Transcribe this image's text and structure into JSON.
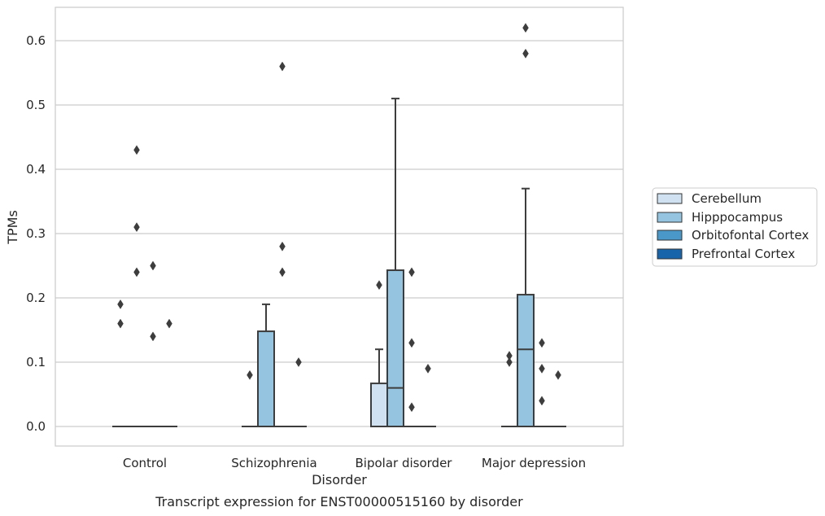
{
  "chart_data": {
    "type": "box",
    "caption": "Transcript expression for ENST00000515160 by disorder",
    "xlabel": "Disorder",
    "ylabel": "TPMs",
    "ylim": [
      -0.03,
      0.65
    ],
    "yticks": [
      "0.0",
      "0.1",
      "0.2",
      "0.3",
      "0.4",
      "0.5",
      "0.6"
    ],
    "grid": "horizontal",
    "legend_position": "right",
    "categories": [
      "Control",
      "Schizophrenia",
      "Bipolar disorder",
      "Major depression"
    ],
    "series": [
      {
        "name": "Cerebellum",
        "color": "#d0e1f2"
      },
      {
        "name": "Hipppocampus",
        "color": "#94c4df"
      },
      {
        "name": "Orbitofontal Cortex",
        "color": "#4a98c9"
      },
      {
        "name": "Prefrontal Cortex",
        "color": "#1764ab"
      }
    ],
    "boxes": [
      {
        "category": "Control",
        "series": "Cerebellum",
        "q1": 0,
        "median": 0,
        "q3": 0,
        "whisker_low": 0,
        "whisker_high": 0,
        "outliers": [
          0.19,
          0.16
        ]
      },
      {
        "category": "Control",
        "series": "Hipppocampus",
        "q1": 0,
        "median": 0,
        "q3": 0,
        "whisker_low": 0,
        "whisker_high": 0,
        "outliers": [
          0.43,
          0.31,
          0.24
        ]
      },
      {
        "category": "Control",
        "series": "Orbitofontal Cortex",
        "q1": 0,
        "median": 0,
        "q3": 0,
        "whisker_low": 0,
        "whisker_high": 0,
        "outliers": [
          0.25,
          0.14
        ]
      },
      {
        "category": "Control",
        "series": "Prefrontal Cortex",
        "q1": 0,
        "median": 0,
        "q3": 0,
        "whisker_low": 0,
        "whisker_high": 0,
        "outliers": [
          0.16
        ]
      },
      {
        "category": "Schizophrenia",
        "series": "Cerebellum",
        "q1": 0,
        "median": 0,
        "q3": 0,
        "whisker_low": 0,
        "whisker_high": 0,
        "outliers": [
          0.08
        ]
      },
      {
        "category": "Schizophrenia",
        "series": "Hipppocampus",
        "q1": 0,
        "median": 0,
        "q3": 0.148,
        "whisker_low": 0,
        "whisker_high": 0.19,
        "outliers": []
      },
      {
        "category": "Schizophrenia",
        "series": "Orbitofontal Cortex",
        "q1": 0,
        "median": 0,
        "q3": 0,
        "whisker_low": 0,
        "whisker_high": 0,
        "outliers": [
          0.56,
          0.28,
          0.24
        ]
      },
      {
        "category": "Schizophrenia",
        "series": "Prefrontal Cortex",
        "q1": 0,
        "median": 0,
        "q3": 0,
        "whisker_low": 0,
        "whisker_high": 0,
        "outliers": [
          0.1
        ]
      },
      {
        "category": "Bipolar disorder",
        "series": "Cerebellum",
        "q1": 0,
        "median": 0,
        "q3": 0.067,
        "whisker_low": 0,
        "whisker_high": 0.12,
        "outliers": [
          0.22
        ]
      },
      {
        "category": "Bipolar disorder",
        "series": "Hipppocampus",
        "q1": 0,
        "median": 0.06,
        "q3": 0.243,
        "whisker_low": 0,
        "whisker_high": 0.51,
        "outliers": []
      },
      {
        "category": "Bipolar disorder",
        "series": "Orbitofontal Cortex",
        "q1": 0,
        "median": 0,
        "q3": 0,
        "whisker_low": 0,
        "whisker_high": 0,
        "outliers": [
          0.24,
          0.13,
          0.03
        ]
      },
      {
        "category": "Bipolar disorder",
        "series": "Prefrontal Cortex",
        "q1": 0,
        "median": 0,
        "q3": 0,
        "whisker_low": 0,
        "whisker_high": 0,
        "outliers": [
          0.09
        ]
      },
      {
        "category": "Major depression",
        "series": "Cerebellum",
        "q1": 0,
        "median": 0,
        "q3": 0,
        "whisker_low": 0,
        "whisker_high": 0,
        "outliers": [
          0.11,
          0.1
        ]
      },
      {
        "category": "Major depression",
        "series": "Hipppocampus",
        "q1": 0,
        "median": 0.12,
        "q3": 0.205,
        "whisker_low": 0,
        "whisker_high": 0.37,
        "outliers": [
          0.62,
          0.58
        ]
      },
      {
        "category": "Major depression",
        "series": "Orbitofontal Cortex",
        "q1": 0,
        "median": 0,
        "q3": 0,
        "whisker_low": 0,
        "whisker_high": 0,
        "outliers": [
          0.13,
          0.09,
          0.04
        ]
      },
      {
        "category": "Major depression",
        "series": "Prefrontal Cortex",
        "q1": 0,
        "median": 0,
        "q3": 0,
        "whisker_low": 0,
        "whisker_high": 0,
        "outliers": [
          0.08
        ]
      }
    ]
  }
}
